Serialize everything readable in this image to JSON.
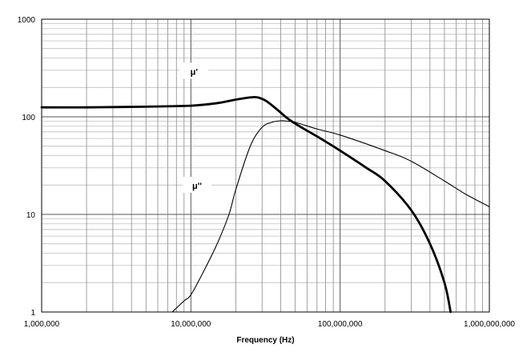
{
  "chart_data": {
    "type": "line",
    "title": "",
    "xlabel": "Frequency (Hz)",
    "ylabel": "",
    "x_scale": "log",
    "y_scale": "log",
    "xlim": [
      1000000,
      1000000000
    ],
    "ylim": [
      1,
      1000
    ],
    "grid": true,
    "x_ticks": [
      {
        "value": 1000000,
        "label": "1,000,000"
      },
      {
        "value": 10000000,
        "label": "10,000,000"
      },
      {
        "value": 100000000,
        "label": "100,000,000"
      },
      {
        "value": 1000000000,
        "label": "1,000,000,000"
      }
    ],
    "y_ticks": [
      {
        "value": 1,
        "label": "1"
      },
      {
        "value": 10,
        "label": "10"
      },
      {
        "value": 100,
        "label": "100"
      },
      {
        "value": 1000,
        "label": "1000"
      }
    ],
    "series": [
      {
        "name": "μ'",
        "style": "thick",
        "x": [
          1000000,
          2000000,
          5000000,
          10000000,
          15000000,
          20000000,
          25000000,
          28000000,
          32000000,
          38000000,
          45000000,
          55000000,
          70000000,
          100000000,
          150000000,
          200000000,
          300000000,
          400000000,
          500000000,
          550000000
        ],
        "y": [
          125,
          125,
          127,
          130,
          138,
          150,
          158,
          158,
          145,
          118,
          95,
          78,
          63,
          45,
          30,
          22,
          11,
          5,
          2,
          1
        ]
      },
      {
        "name": "μ''",
        "style": "thin",
        "x": [
          7500000,
          9000000,
          10000000,
          12000000,
          15000000,
          18000000,
          20000000,
          25000000,
          30000000,
          35000000,
          40000000,
          45000000,
          50000000,
          70000000,
          100000000,
          200000000,
          300000000,
          500000000,
          700000000,
          1000000000
        ],
        "y": [
          1,
          1.3,
          1.5,
          2.5,
          5,
          10,
          18,
          50,
          78,
          88,
          91,
          90,
          88,
          75,
          65,
          45,
          35,
          22,
          16,
          12
        ]
      }
    ],
    "annotations": [
      {
        "text": "μ'",
        "series": 0
      },
      {
        "text": "μ''",
        "series": 1
      }
    ]
  }
}
